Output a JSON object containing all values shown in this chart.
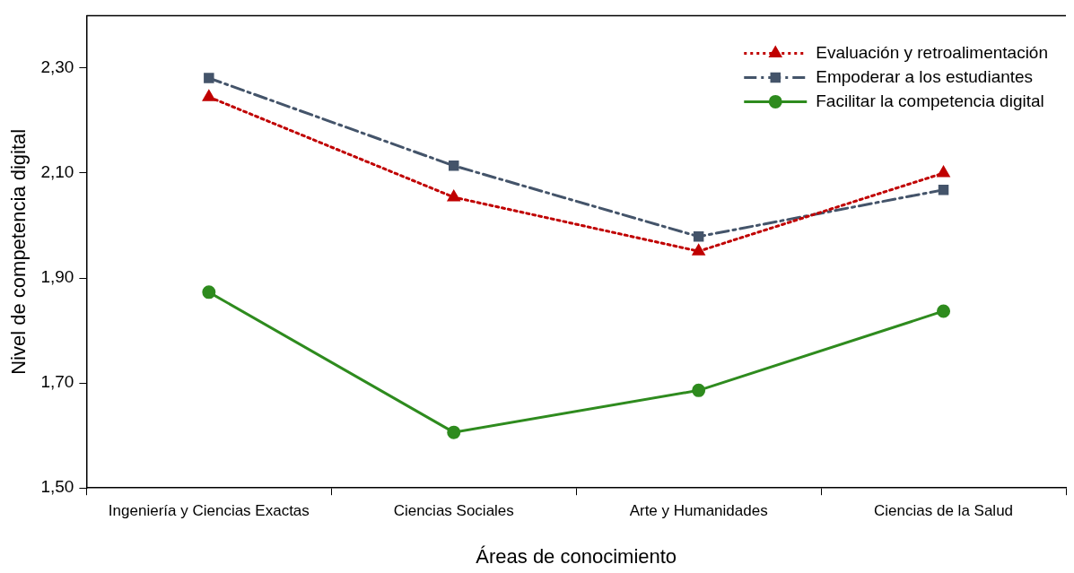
{
  "chart_data": {
    "type": "line",
    "xlabel": "Áreas de conocimiento",
    "ylabel": "Nivel de competencia digital",
    "categories": [
      "Ingeniería y Ciencias Exactas",
      "Ciencias Sociales",
      "Arte y Humanidades",
      "Ciencias de la Salud"
    ],
    "series": [
      {
        "name": "Evaluación y retroalimentación",
        "color": "#c00000",
        "marker": "triangle",
        "line_style": "dotted",
        "values": [
          2.245,
          2.054,
          1.951,
          2.1
        ]
      },
      {
        "name": "Empoderar a los estudiantes",
        "color": "#44546a",
        "marker": "square",
        "line_style": "dashed",
        "values": [
          2.281,
          2.114,
          1.979,
          2.068
        ]
      },
      {
        "name": "Facilitar la competencia digital",
        "color": "#2e8b1e",
        "marker": "circle",
        "line_style": "solid",
        "values": [
          1.873,
          1.606,
          1.686,
          1.837
        ]
      }
    ],
    "ylim": [
      1.5,
      2.4
    ],
    "yticks": [
      {
        "value": 1.5,
        "label": "1,50"
      },
      {
        "value": 1.7,
        "label": "1,70"
      },
      {
        "value": 1.9,
        "label": "1,90"
      },
      {
        "value": 2.1,
        "label": "2,10"
      },
      {
        "value": 2.3,
        "label": "2,30"
      }
    ],
    "grid": false,
    "legend": "top right"
  }
}
